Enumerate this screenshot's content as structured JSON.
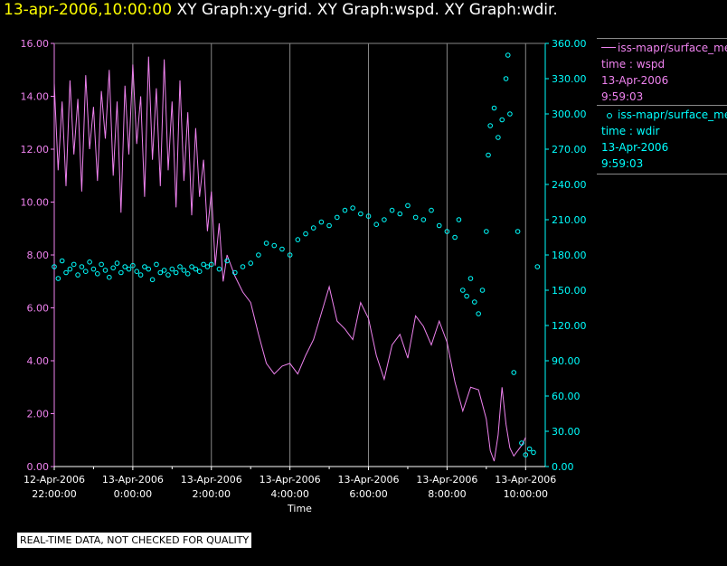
{
  "title": {
    "time": "13-apr-2006,10:00:00",
    "graphs": "XY Graph:xy-grid.  XY Graph:wspd.  XY Graph:wdir."
  },
  "quality_note": "REAL-TIME DATA, NOT CHECKED FOR QUALITY",
  "legend": [
    {
      "name": "iss-mapr/surface_met",
      "line2": "time : wspd",
      "line3": "13-Apr-2006",
      "line4": "9:59:03",
      "color": "#ee82ee",
      "marker": "line"
    },
    {
      "name": "iss-mapr/surface_met",
      "line2": "time : wdir",
      "line3": "13-Apr-2006",
      "line4": "9:59:03",
      "color": "#00ffff",
      "marker": "circle"
    }
  ],
  "chart_data": {
    "type": "line",
    "xlabel": "Time",
    "x_range_hours": [
      0,
      12.5
    ],
    "x_ticks": [
      {
        "x": 0,
        "l1": "12-Apr-2006",
        "l2": "22:00:00"
      },
      {
        "x": 2,
        "l1": "13-Apr-2006",
        "l2": "0:00:00"
      },
      {
        "x": 4,
        "l1": "13-Apr-2006",
        "l2": "2:00:00"
      },
      {
        "x": 6,
        "l1": "13-Apr-2006",
        "l2": "4:00:00"
      },
      {
        "x": 8,
        "l1": "13-Apr-2006",
        "l2": "6:00:00"
      },
      {
        "x": 10,
        "l1": "13-Apr-2006",
        "l2": "8:00:00"
      },
      {
        "x": 12,
        "l1": "13-Apr-2006",
        "l2": "10:00:00"
      }
    ],
    "y_left": {
      "range": [
        0,
        16
      ],
      "ticks": [
        "0.00",
        "2.00",
        "4.00",
        "6.00",
        "8.00",
        "10.00",
        "12.00",
        "14.00",
        "16.00"
      ],
      "color": "#ee82ee"
    },
    "y_right": {
      "range": [
        0,
        360
      ],
      "ticks": [
        "0.00",
        "30.00",
        "60.00",
        "90.00",
        "120.00",
        "150.00",
        "180.00",
        "210.00",
        "240.00",
        "270.00",
        "300.00",
        "330.00",
        "360.00"
      ],
      "color": "#00ffff"
    },
    "grid": true,
    "series": [
      {
        "name": "wspd",
        "axis": "left",
        "style": "line",
        "color": "#ee82ee",
        "points": [
          [
            0.0,
            14.5
          ],
          [
            0.1,
            11.2
          ],
          [
            0.2,
            13.8
          ],
          [
            0.3,
            10.6
          ],
          [
            0.4,
            14.6
          ],
          [
            0.5,
            11.8
          ],
          [
            0.6,
            13.9
          ],
          [
            0.7,
            10.4
          ],
          [
            0.8,
            14.8
          ],
          [
            0.9,
            12.0
          ],
          [
            1.0,
            13.6
          ],
          [
            1.1,
            10.8
          ],
          [
            1.2,
            14.2
          ],
          [
            1.3,
            12.4
          ],
          [
            1.4,
            15.0
          ],
          [
            1.5,
            11.0
          ],
          [
            1.6,
            13.8
          ],
          [
            1.7,
            9.6
          ],
          [
            1.8,
            14.4
          ],
          [
            1.9,
            11.8
          ],
          [
            2.0,
            15.2
          ],
          [
            2.1,
            12.2
          ],
          [
            2.2,
            14.0
          ],
          [
            2.3,
            10.2
          ],
          [
            2.4,
            15.5
          ],
          [
            2.5,
            11.6
          ],
          [
            2.6,
            14.3
          ],
          [
            2.7,
            10.6
          ],
          [
            2.8,
            15.4
          ],
          [
            2.9,
            11.2
          ],
          [
            3.0,
            13.8
          ],
          [
            3.1,
            9.8
          ],
          [
            3.2,
            14.6
          ],
          [
            3.3,
            10.8
          ],
          [
            3.4,
            13.4
          ],
          [
            3.5,
            9.5
          ],
          [
            3.6,
            12.8
          ],
          [
            3.7,
            10.2
          ],
          [
            3.8,
            11.6
          ],
          [
            3.9,
            8.9
          ],
          [
            4.0,
            10.4
          ],
          [
            4.1,
            7.6
          ],
          [
            4.2,
            9.2
          ],
          [
            4.3,
            7.0
          ],
          [
            4.4,
            8.0
          ],
          [
            4.6,
            7.2
          ],
          [
            4.8,
            6.6
          ],
          [
            5.0,
            6.2
          ],
          [
            5.2,
            5.0
          ],
          [
            5.4,
            3.9
          ],
          [
            5.6,
            3.5
          ],
          [
            5.8,
            3.8
          ],
          [
            6.0,
            3.9
          ],
          [
            6.2,
            3.5
          ],
          [
            6.4,
            4.2
          ],
          [
            6.6,
            4.8
          ],
          [
            6.8,
            5.8
          ],
          [
            7.0,
            6.8
          ],
          [
            7.2,
            5.5
          ],
          [
            7.4,
            5.2
          ],
          [
            7.6,
            4.8
          ],
          [
            7.8,
            6.2
          ],
          [
            8.0,
            5.6
          ],
          [
            8.2,
            4.2
          ],
          [
            8.4,
            3.3
          ],
          [
            8.6,
            4.6
          ],
          [
            8.8,
            5.0
          ],
          [
            9.0,
            4.1
          ],
          [
            9.2,
            5.7
          ],
          [
            9.4,
            5.3
          ],
          [
            9.6,
            4.6
          ],
          [
            9.8,
            5.5
          ],
          [
            10.0,
            4.7
          ],
          [
            10.2,
            3.2
          ],
          [
            10.4,
            2.1
          ],
          [
            10.6,
            3.0
          ],
          [
            10.8,
            2.9
          ],
          [
            11.0,
            1.8
          ],
          [
            11.1,
            0.6
          ],
          [
            11.2,
            0.2
          ],
          [
            11.3,
            1.2
          ],
          [
            11.4,
            3.0
          ],
          [
            11.5,
            1.6
          ],
          [
            11.6,
            0.7
          ],
          [
            11.7,
            0.4
          ],
          [
            11.8,
            0.6
          ],
          [
            11.9,
            0.8
          ],
          [
            12.0,
            1.1
          ]
        ]
      },
      {
        "name": "wdir",
        "axis": "right",
        "style": "scatter",
        "color": "#00ffff",
        "points": [
          [
            0.0,
            170
          ],
          [
            0.1,
            160
          ],
          [
            0.2,
            175
          ],
          [
            0.3,
            165
          ],
          [
            0.4,
            168
          ],
          [
            0.5,
            172
          ],
          [
            0.6,
            163
          ],
          [
            0.7,
            170
          ],
          [
            0.8,
            166
          ],
          [
            0.9,
            174
          ],
          [
            1.0,
            168
          ],
          [
            1.1,
            164
          ],
          [
            1.2,
            172
          ],
          [
            1.3,
            167
          ],
          [
            1.4,
            161
          ],
          [
            1.5,
            169
          ],
          [
            1.6,
            173
          ],
          [
            1.7,
            165
          ],
          [
            1.8,
            170
          ],
          [
            1.9,
            168
          ],
          [
            2.0,
            171
          ],
          [
            2.1,
            166
          ],
          [
            2.2,
            163
          ],
          [
            2.3,
            170
          ],
          [
            2.4,
            168
          ],
          [
            2.5,
            159
          ],
          [
            2.6,
            172
          ],
          [
            2.7,
            165
          ],
          [
            2.8,
            167
          ],
          [
            2.9,
            163
          ],
          [
            3.0,
            168
          ],
          [
            3.1,
            165
          ],
          [
            3.2,
            170
          ],
          [
            3.3,
            167
          ],
          [
            3.4,
            164
          ],
          [
            3.5,
            170
          ],
          [
            3.6,
            168
          ],
          [
            3.7,
            166
          ],
          [
            3.8,
            172
          ],
          [
            3.9,
            170
          ],
          [
            4.0,
            172
          ],
          [
            4.2,
            168
          ],
          [
            4.4,
            175
          ],
          [
            4.6,
            165
          ],
          [
            4.8,
            170
          ],
          [
            5.0,
            173
          ],
          [
            5.2,
            180
          ],
          [
            5.4,
            190
          ],
          [
            5.6,
            188
          ],
          [
            5.8,
            185
          ],
          [
            6.0,
            180
          ],
          [
            6.2,
            193
          ],
          [
            6.4,
            198
          ],
          [
            6.6,
            203
          ],
          [
            6.8,
            208
          ],
          [
            7.0,
            205
          ],
          [
            7.2,
            212
          ],
          [
            7.4,
            218
          ],
          [
            7.6,
            220
          ],
          [
            7.8,
            215
          ],
          [
            8.0,
            213
          ],
          [
            8.2,
            206
          ],
          [
            8.4,
            210
          ],
          [
            8.6,
            218
          ],
          [
            8.8,
            215
          ],
          [
            9.0,
            222
          ],
          [
            9.2,
            212
          ],
          [
            9.4,
            210
          ],
          [
            9.6,
            218
          ],
          [
            9.8,
            205
          ],
          [
            10.0,
            200
          ],
          [
            10.2,
            195
          ],
          [
            10.3,
            210
          ],
          [
            10.4,
            150
          ],
          [
            10.5,
            145
          ],
          [
            10.6,
            160
          ],
          [
            10.7,
            140
          ],
          [
            10.8,
            130
          ],
          [
            10.9,
            150
          ],
          [
            11.0,
            200
          ],
          [
            11.05,
            265
          ],
          [
            11.1,
            290
          ],
          [
            11.2,
            305
          ],
          [
            11.3,
            280
          ],
          [
            11.4,
            295
          ],
          [
            11.5,
            330
          ],
          [
            11.55,
            350
          ],
          [
            11.6,
            300
          ],
          [
            11.7,
            80
          ],
          [
            11.8,
            200
          ],
          [
            11.9,
            20
          ],
          [
            12.0,
            10
          ],
          [
            12.1,
            15
          ],
          [
            12.2,
            12
          ],
          [
            12.3,
            170
          ]
        ]
      }
    ]
  }
}
